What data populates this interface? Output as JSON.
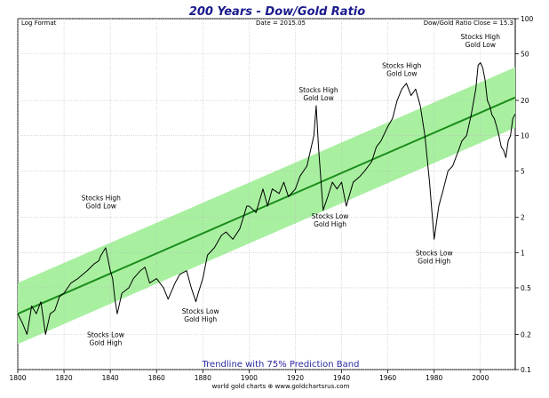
{
  "chart_data": {
    "type": "line",
    "title": "200 Years - Dow/Gold Ratio",
    "subtitle_left": "Log Format",
    "subtitle_center": "Date = 2015.05",
    "subtitle_right": "Dow/Gold Ratio Close = 15.3",
    "caption": "Trendline with 75% Prediction Band",
    "credit": "world gold charts ⊕ www.goldchartsrus.com",
    "y_scale": "log",
    "xlim": [
      1800,
      2015.05
    ],
    "ylim": [
      0.1,
      100
    ],
    "x_ticks": [
      "1800",
      "1820",
      "1840",
      "1860",
      "1880",
      "1900",
      "1920",
      "1940",
      "1960",
      "1980",
      "2000"
    ],
    "y_ticks": [
      "100",
      "50",
      "20",
      "10",
      "5",
      "2",
      "1",
      "0.5",
      "0.2",
      "0.1"
    ],
    "grid": true,
    "series": [
      {
        "color": "#000000",
        "x": [
          1800,
          1802,
          1804,
          1806,
          1808,
          1810,
          1812,
          1814,
          1816,
          1818,
          1820,
          1823,
          1826,
          1830,
          1833,
          1835,
          1836,
          1838,
          1840,
          1841,
          1842,
          1843,
          1845,
          1848,
          1850,
          1853,
          1855,
          1857,
          1860,
          1863,
          1865,
          1868,
          1870,
          1873,
          1875,
          1877,
          1878,
          1880,
          1882,
          1885,
          1888,
          1890,
          1893,
          1896,
          1899,
          1900,
          1903,
          1906,
          1908,
          1910,
          1913,
          1915,
          1917,
          1920,
          1922,
          1925,
          1928,
          1929,
          1930,
          1932,
          1934,
          1936,
          1938,
          1940,
          1942,
          1945,
          1948,
          1950,
          1953,
          1955,
          1957,
          1960,
          1962,
          1964,
          1966,
          1968,
          1970,
          1972,
          1974,
          1976,
          1978,
          1980,
          1982,
          1984,
          1986,
          1988,
          1990,
          1992,
          1994,
          1996,
          1998,
          1999,
          2000,
          2001,
          2002,
          2003,
          2004,
          2005,
          2006,
          2007,
          2008,
          2009,
          2010,
          2011,
          2012,
          2013,
          2014,
          2015.05
        ],
        "values": [
          0.3,
          0.25,
          0.2,
          0.35,
          0.3,
          0.38,
          0.2,
          0.3,
          0.32,
          0.42,
          0.45,
          0.55,
          0.6,
          0.7,
          0.8,
          0.85,
          0.95,
          1.1,
          0.7,
          0.6,
          0.4,
          0.3,
          0.45,
          0.5,
          0.6,
          0.7,
          0.75,
          0.55,
          0.6,
          0.5,
          0.4,
          0.55,
          0.65,
          0.7,
          0.5,
          0.38,
          0.45,
          0.6,
          0.95,
          1.1,
          1.4,
          1.5,
          1.3,
          1.6,
          2.5,
          2.5,
          2.2,
          3.5,
          2.5,
          3.5,
          3.2,
          4.0,
          3.0,
          3.5,
          4.5,
          5.5,
          10.0,
          18.0,
          8.0,
          2.3,
          3.0,
          4.0,
          3.5,
          4.0,
          2.5,
          4.0,
          4.5,
          5.0,
          6.0,
          8.0,
          9.0,
          12.0,
          14.0,
          20.0,
          25.0,
          28.0,
          22.0,
          25.0,
          18.0,
          10.0,
          4.0,
          1.3,
          2.5,
          3.5,
          5.0,
          5.5,
          7.0,
          9.0,
          10.0,
          15.0,
          25.0,
          40.0,
          42.0,
          38.0,
          30.0,
          20.0,
          18.0,
          15.0,
          14.0,
          12.0,
          10.0,
          8.0,
          7.5,
          6.5,
          9.0,
          10.0,
          14.0,
          15.3
        ]
      },
      {
        "color": "#1a8c1a",
        "x": [
          1800,
          2015.05
        ],
        "values": [
          0.3,
          21.2
        ]
      }
    ],
    "band": {
      "color": "#a8f0a0",
      "x": [
        1800,
        2015.05
      ],
      "lower": [
        0.165,
        11.7
      ],
      "upper": [
        0.55,
        38.5
      ]
    },
    "annotations": [
      {
        "text": [
          "Stocks High",
          "Gold Low"
        ],
        "x": 1836,
        "y": 2.8
      },
      {
        "text": [
          "Stocks Low",
          "Gold High"
        ],
        "x": 1838,
        "y": 0.19
      },
      {
        "text": [
          "Stocks Low",
          "Gold High"
        ],
        "x": 1879,
        "y": 0.3
      },
      {
        "text": [
          "Stocks High",
          "Gold Low"
        ],
        "x": 1930,
        "y": 23.5
      },
      {
        "text": [
          "Stocks Low",
          "Gold High"
        ],
        "x": 1935,
        "y": 1.95
      },
      {
        "text": [
          "Stocks High",
          "Gold Low"
        ],
        "x": 1966,
        "y": 38
      },
      {
        "text": [
          "Stocks Low",
          "Gold High"
        ],
        "x": 1980,
        "y": 0.95
      },
      {
        "text": [
          "Stocks High",
          "Gold Low"
        ],
        "x": 2000,
        "y": 67
      }
    ]
  }
}
